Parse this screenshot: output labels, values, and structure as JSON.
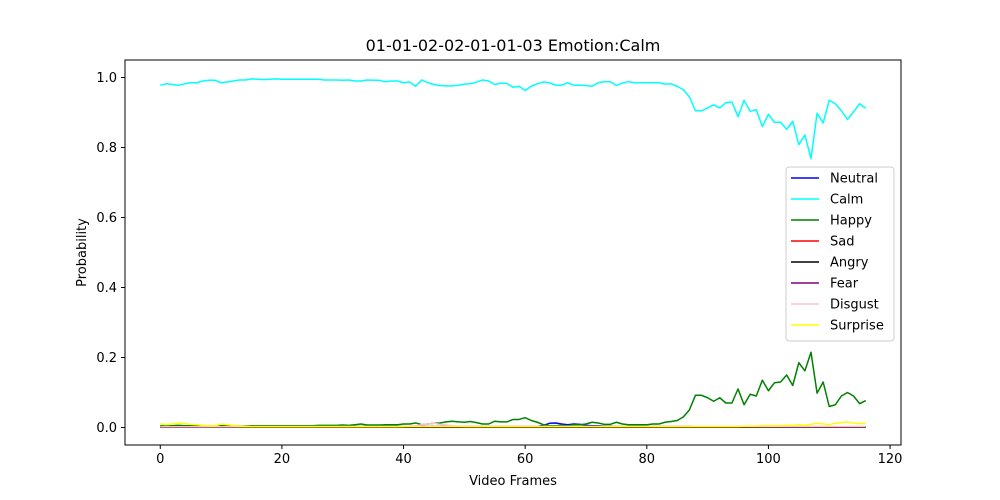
{
  "chart_data": {
    "type": "line",
    "title": "01-01-02-02-01-01-03 Emotion:Calm",
    "xlabel": "Video Frames",
    "ylabel": "Probability",
    "xlim": [
      -5.8,
      121.8
    ],
    "ylim": [
      -0.05,
      1.05
    ],
    "xticks": [
      0,
      20,
      40,
      60,
      80,
      100,
      120
    ],
    "yticks": [
      0.0,
      0.2,
      0.4,
      0.6,
      0.8,
      1.0
    ],
    "xtick_labels": [
      "0",
      "20",
      "40",
      "60",
      "80",
      "100",
      "120"
    ],
    "ytick_labels": [
      "0.0",
      "0.2",
      "0.4",
      "0.6",
      "0.8",
      "1.0"
    ],
    "grid": false,
    "legend_position": "center-right",
    "series": [
      {
        "name": "Neutral",
        "color": "#0000ff",
        "values": [
          0.003,
          0.003,
          0.004,
          0.005,
          0.004,
          0.004,
          0.003,
          0.003,
          0.003,
          0.003,
          0.003,
          0.003,
          0.003,
          0.003,
          0.003,
          0.003,
          0.003,
          0.003,
          0.003,
          0.003,
          0.003,
          0.003,
          0.003,
          0.003,
          0.003,
          0.003,
          0.003,
          0.003,
          0.003,
          0.003,
          0.003,
          0.003,
          0.003,
          0.003,
          0.003,
          0.003,
          0.003,
          0.003,
          0.003,
          0.003,
          0.003,
          0.003,
          0.003,
          0.003,
          0.003,
          0.003,
          0.003,
          0.003,
          0.003,
          0.003,
          0.003,
          0.003,
          0.003,
          0.003,
          0.003,
          0.003,
          0.003,
          0.003,
          0.003,
          0.003,
          0.003,
          0.003,
          0.003,
          0.006,
          0.012,
          0.013,
          0.01,
          0.008,
          0.01,
          0.009,
          0.006,
          0.005,
          0.005,
          0.004,
          0.004,
          0.003,
          0.003,
          0.003,
          0.003,
          0.003,
          0.003,
          0.003,
          0.003,
          0.003,
          0.003,
          0.003,
          0.003,
          0.003,
          0.002,
          0.002,
          0.002,
          0.002,
          0.002,
          0.002,
          0.002,
          0.002,
          0.002,
          0.002,
          0.002,
          0.002,
          0.002,
          0.002,
          0.002,
          0.002,
          0.002,
          0.002,
          0.002,
          0.002,
          0.002,
          0.002,
          0.002,
          0.002,
          0.002,
          0.002,
          0.002,
          0.002,
          0.002
        ]
      },
      {
        "name": "Calm",
        "color": "#00ffff",
        "values": [
          0.978,
          0.982,
          0.98,
          0.978,
          0.982,
          0.985,
          0.985,
          0.99,
          0.992,
          0.992,
          0.985,
          0.987,
          0.99,
          0.993,
          0.993,
          0.996,
          0.995,
          0.994,
          0.995,
          0.996,
          0.995,
          0.995,
          0.995,
          0.995,
          0.995,
          0.995,
          0.995,
          0.993,
          0.993,
          0.993,
          0.992,
          0.993,
          0.99,
          0.99,
          0.993,
          0.992,
          0.992,
          0.988,
          0.99,
          0.99,
          0.985,
          0.987,
          0.975,
          0.993,
          0.985,
          0.98,
          0.977,
          0.976,
          0.976,
          0.978,
          0.981,
          0.982,
          0.987,
          0.993,
          0.99,
          0.98,
          0.984,
          0.983,
          0.972,
          0.975,
          0.963,
          0.975,
          0.982,
          0.987,
          0.985,
          0.978,
          0.978,
          0.985,
          0.978,
          0.978,
          0.977,
          0.975,
          0.985,
          0.988,
          0.988,
          0.977,
          0.984,
          0.988,
          0.985,
          0.985,
          0.985,
          0.985,
          0.985,
          0.981,
          0.982,
          0.975,
          0.965,
          0.945,
          0.905,
          0.905,
          0.913,
          0.922,
          0.913,
          0.928,
          0.93,
          0.888,
          0.935,
          0.903,
          0.908,
          0.86,
          0.895,
          0.872,
          0.872,
          0.852,
          0.875,
          0.808,
          0.836,
          0.768,
          0.898,
          0.87,
          0.935,
          0.925,
          0.905,
          0.88,
          0.902,
          0.925,
          0.912
        ]
      },
      {
        "name": "Happy",
        "color": "#008000",
        "values": [
          0.005,
          0.004,
          0.005,
          0.006,
          0.005,
          0.005,
          0.005,
          0.004,
          0.004,
          0.004,
          0.005,
          0.005,
          0.005,
          0.004,
          0.004,
          0.005,
          0.005,
          0.005,
          0.005,
          0.005,
          0.005,
          0.005,
          0.005,
          0.005,
          0.005,
          0.005,
          0.006,
          0.006,
          0.006,
          0.006,
          0.007,
          0.006,
          0.008,
          0.01,
          0.007,
          0.007,
          0.007,
          0.008,
          0.008,
          0.008,
          0.01,
          0.01,
          0.013,
          0.008,
          0.01,
          0.012,
          0.013,
          0.016,
          0.018,
          0.016,
          0.015,
          0.017,
          0.014,
          0.01,
          0.01,
          0.018,
          0.016,
          0.016,
          0.023,
          0.023,
          0.028,
          0.02,
          0.015,
          0.008,
          0.005,
          0.005,
          0.006,
          0.005,
          0.008,
          0.008,
          0.01,
          0.015,
          0.013,
          0.009,
          0.009,
          0.015,
          0.01,
          0.008,
          0.008,
          0.008,
          0.008,
          0.01,
          0.01,
          0.015,
          0.017,
          0.02,
          0.03,
          0.05,
          0.092,
          0.092,
          0.085,
          0.075,
          0.085,
          0.07,
          0.07,
          0.11,
          0.065,
          0.095,
          0.09,
          0.135,
          0.105,
          0.128,
          0.13,
          0.15,
          0.12,
          0.185,
          0.162,
          0.215,
          0.098,
          0.13,
          0.06,
          0.065,
          0.09,
          0.1,
          0.09,
          0.068,
          0.077
        ]
      },
      {
        "name": "Sad",
        "color": "#ff0000",
        "values": [
          0.001,
          0.001,
          0.001,
          0.001,
          0.001,
          0.001,
          0.001,
          0.001,
          0.001,
          0.001,
          0.001,
          0.001,
          0.001,
          0.001,
          0.001,
          0.001,
          0.001,
          0.001,
          0.001,
          0.001,
          0.001,
          0.001,
          0.001,
          0.001,
          0.001,
          0.001,
          0.001,
          0.001,
          0.001,
          0.001,
          0.001,
          0.001,
          0.001,
          0.001,
          0.001,
          0.001,
          0.001,
          0.001,
          0.001,
          0.001,
          0.001,
          0.001,
          0.001,
          0.001,
          0.001,
          0.001,
          0.001,
          0.001,
          0.001,
          0.001,
          0.001,
          0.001,
          0.001,
          0.001,
          0.001,
          0.001,
          0.001,
          0.001,
          0.001,
          0.001,
          0.001,
          0.001,
          0.001,
          0.001,
          0.001,
          0.001,
          0.001,
          0.001,
          0.001,
          0.001,
          0.001,
          0.001,
          0.001,
          0.001,
          0.001,
          0.001,
          0.001,
          0.001,
          0.001,
          0.001,
          0.001,
          0.001,
          0.001,
          0.001,
          0.001,
          0.001,
          0.001,
          0.001,
          0.001,
          0.001,
          0.001,
          0.001,
          0.001,
          0.001,
          0.001,
          0.001,
          0.001,
          0.001,
          0.001,
          0.001,
          0.001,
          0.001,
          0.001,
          0.001,
          0.001,
          0.001,
          0.001,
          0.001,
          0.001,
          0.001,
          0.001,
          0.001,
          0.001,
          0.001,
          0.001,
          0.001,
          0.001
        ]
      },
      {
        "name": "Angry",
        "color": "#000000",
        "values": [
          0.001,
          0.001,
          0.001,
          0.001,
          0.001,
          0.001,
          0.001,
          0.001,
          0.001,
          0.001,
          0.001,
          0.001,
          0.001,
          0.001,
          0.001,
          0.001,
          0.001,
          0.001,
          0.001,
          0.001,
          0.001,
          0.001,
          0.001,
          0.001,
          0.001,
          0.001,
          0.001,
          0.001,
          0.001,
          0.001,
          0.001,
          0.001,
          0.001,
          0.001,
          0.001,
          0.001,
          0.001,
          0.001,
          0.001,
          0.001,
          0.001,
          0.001,
          0.001,
          0.001,
          0.001,
          0.001,
          0.001,
          0.001,
          0.001,
          0.001,
          0.001,
          0.001,
          0.001,
          0.001,
          0.001,
          0.001,
          0.001,
          0.001,
          0.001,
          0.001,
          0.001,
          0.001,
          0.001,
          0.001,
          0.001,
          0.001,
          0.001,
          0.001,
          0.001,
          0.001,
          0.001,
          0.001,
          0.001,
          0.001,
          0.001,
          0.001,
          0.001,
          0.001,
          0.001,
          0.001,
          0.001,
          0.001,
          0.001,
          0.001,
          0.001,
          0.001,
          0.001,
          0.001,
          0.001,
          0.001,
          0.001,
          0.001,
          0.001,
          0.001,
          0.001,
          0.001,
          0.001,
          0.001,
          0.001,
          0.001,
          0.001,
          0.001,
          0.001,
          0.001,
          0.001,
          0.001,
          0.001,
          0.001,
          0.001,
          0.001,
          0.001,
          0.001,
          0.001,
          0.001,
          0.001,
          0.001,
          0.001
        ]
      },
      {
        "name": "Fear",
        "color": "#800080",
        "values": [
          0.002,
          0.002,
          0.002,
          0.002,
          0.002,
          0.002,
          0.002,
          0.002,
          0.002,
          0.002,
          0.002,
          0.002,
          0.002,
          0.002,
          0.002,
          0.002,
          0.002,
          0.002,
          0.002,
          0.002,
          0.002,
          0.002,
          0.002,
          0.002,
          0.002,
          0.002,
          0.002,
          0.002,
          0.002,
          0.002,
          0.002,
          0.002,
          0.002,
          0.002,
          0.002,
          0.002,
          0.002,
          0.002,
          0.002,
          0.002,
          0.002,
          0.002,
          0.002,
          0.002,
          0.002,
          0.002,
          0.002,
          0.002,
          0.002,
          0.002,
          0.002,
          0.002,
          0.002,
          0.002,
          0.002,
          0.002,
          0.002,
          0.002,
          0.002,
          0.002,
          0.002,
          0.002,
          0.002,
          0.002,
          0.002,
          0.002,
          0.002,
          0.002,
          0.002,
          0.002,
          0.002,
          0.002,
          0.002,
          0.002,
          0.002,
          0.002,
          0.002,
          0.002,
          0.002,
          0.002,
          0.002,
          0.002,
          0.002,
          0.002,
          0.002,
          0.002,
          0.002,
          0.002,
          0.002,
          0.002,
          0.002,
          0.002,
          0.002,
          0.002,
          0.002,
          0.002,
          0.002,
          0.002,
          0.002,
          0.002,
          0.002,
          0.002,
          0.002,
          0.002,
          0.002,
          0.002,
          0.002,
          0.002,
          0.002,
          0.002,
          0.002,
          0.002,
          0.002,
          0.002,
          0.002,
          0.002,
          0.002
        ]
      },
      {
        "name": "Disgust",
        "color": "#ffc0cb",
        "values": [
          0.002,
          0.002,
          0.002,
          0.002,
          0.002,
          0.002,
          0.002,
          0.002,
          0.002,
          0.002,
          0.002,
          0.002,
          0.002,
          0.002,
          0.002,
          0.002,
          0.002,
          0.002,
          0.002,
          0.002,
          0.002,
          0.002,
          0.002,
          0.002,
          0.002,
          0.002,
          0.002,
          0.002,
          0.002,
          0.002,
          0.002,
          0.002,
          0.002,
          0.002,
          0.002,
          0.002,
          0.002,
          0.002,
          0.002,
          0.002,
          0.003,
          0.004,
          0.005,
          0.008,
          0.01,
          0.012,
          0.009,
          0.007,
          0.005,
          0.004,
          0.003,
          0.003,
          0.003,
          0.003,
          0.003,
          0.003,
          0.003,
          0.003,
          0.003,
          0.003,
          0.003,
          0.003,
          0.003,
          0.003,
          0.003,
          0.003,
          0.003,
          0.003,
          0.003,
          0.003,
          0.003,
          0.003,
          0.003,
          0.003,
          0.003,
          0.003,
          0.003,
          0.003,
          0.003,
          0.003,
          0.003,
          0.003,
          0.003,
          0.003,
          0.003,
          0.003,
          0.003,
          0.003,
          0.003,
          0.003,
          0.003,
          0.003,
          0.003,
          0.003,
          0.003,
          0.003,
          0.003,
          0.003,
          0.003,
          0.003,
          0.003,
          0.003,
          0.003,
          0.003,
          0.003,
          0.003,
          0.003,
          0.003,
          0.003,
          0.003,
          0.003,
          0.003,
          0.003,
          0.003,
          0.003,
          0.003,
          0.003
        ]
      },
      {
        "name": "Surprise",
        "color": "#ffff00",
        "values": [
          0.01,
          0.009,
          0.01,
          0.012,
          0.011,
          0.009,
          0.008,
          0.006,
          0.005,
          0.004,
          0.01,
          0.008,
          0.006,
          0.004,
          0.003,
          0.003,
          0.003,
          0.003,
          0.003,
          0.003,
          0.003,
          0.003,
          0.003,
          0.003,
          0.003,
          0.003,
          0.003,
          0.003,
          0.003,
          0.003,
          0.003,
          0.003,
          0.003,
          0.003,
          0.003,
          0.003,
          0.003,
          0.003,
          0.003,
          0.003,
          0.003,
          0.003,
          0.003,
          0.003,
          0.003,
          0.003,
          0.003,
          0.003,
          0.003,
          0.003,
          0.003,
          0.003,
          0.003,
          0.003,
          0.003,
          0.003,
          0.003,
          0.003,
          0.003,
          0.003,
          0.003,
          0.003,
          0.003,
          0.003,
          0.003,
          0.003,
          0.003,
          0.003,
          0.003,
          0.003,
          0.003,
          0.003,
          0.003,
          0.003,
          0.003,
          0.003,
          0.003,
          0.003,
          0.003,
          0.003,
          0.003,
          0.003,
          0.003,
          0.003,
          0.003,
          0.003,
          0.003,
          0.003,
          0.003,
          0.003,
          0.003,
          0.003,
          0.003,
          0.003,
          0.003,
          0.003,
          0.004,
          0.004,
          0.004,
          0.005,
          0.005,
          0.005,
          0.005,
          0.006,
          0.006,
          0.008,
          0.006,
          0.009,
          0.012,
          0.01,
          0.008,
          0.012,
          0.014,
          0.016,
          0.012,
          0.011,
          0.012
        ]
      }
    ]
  }
}
